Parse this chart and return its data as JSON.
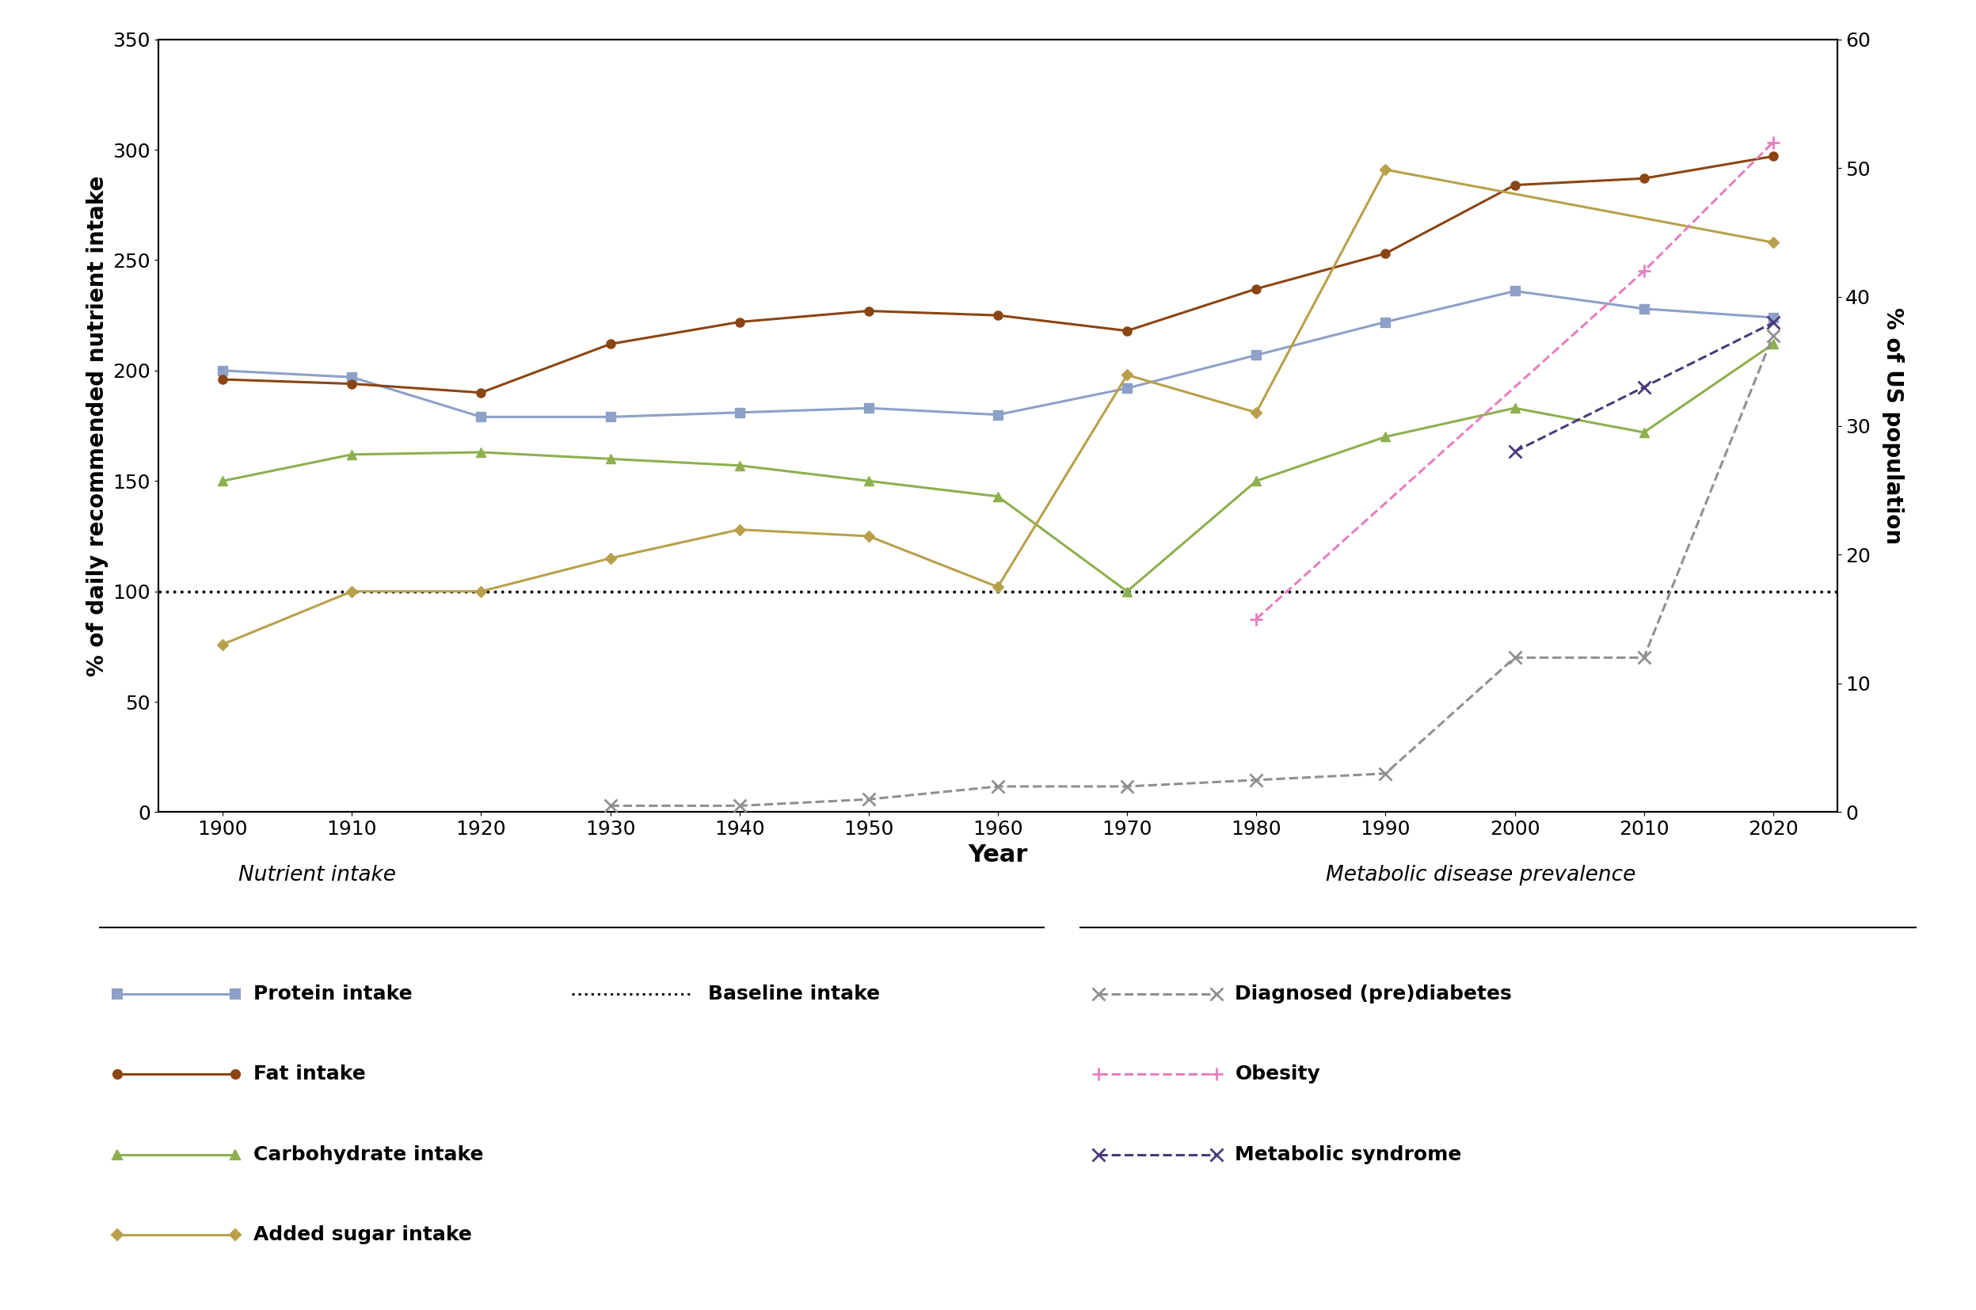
{
  "years": [
    1900,
    1910,
    1920,
    1930,
    1940,
    1950,
    1960,
    1970,
    1980,
    1990,
    2000,
    2010,
    2020
  ],
  "protein_intake": [
    200,
    197,
    179,
    179,
    181,
    183,
    180,
    192,
    207,
    222,
    236,
    228,
    224
  ],
  "fat_intake": [
    196,
    194,
    190,
    212,
    222,
    227,
    225,
    218,
    237,
    253,
    284,
    287,
    297
  ],
  "carb_intake": [
    150,
    162,
    163,
    160,
    157,
    150,
    143,
    100,
    150,
    170,
    183,
    172,
    212
  ],
  "sugar_intake": [
    76,
    100,
    100,
    115,
    128,
    125,
    102,
    198,
    181,
    291,
    null,
    null,
    258
  ],
  "diabetes_pct": [
    null,
    null,
    null,
    0.5,
    0.5,
    1.0,
    2.0,
    2.0,
    2.5,
    3.0,
    12.0,
    12.0,
    37.0
  ],
  "obesity_pct": [
    null,
    null,
    null,
    null,
    null,
    null,
    null,
    null,
    15.0,
    null,
    null,
    42.0,
    52.0
  ],
  "metabolic_pct": [
    null,
    null,
    null,
    null,
    null,
    null,
    null,
    null,
    null,
    null,
    28.0,
    33.0,
    38.0
  ],
  "protein_color": "#8da0c7",
  "fat_color": "#8B4513",
  "carb_color": "#8db04e",
  "sugar_color": "#b8a04a",
  "diabetes_color": "#909090",
  "obesity_color": "#e87ec0",
  "metabolic_color": "#4a3a7a",
  "baseline_color": "#000000",
  "ylabel_left": "% of daily recommended nutrient intake",
  "ylabel_right": "% of US population",
  "xlabel": "Year",
  "ylim_left": [
    0,
    350
  ],
  "ylim_right": [
    0,
    60
  ],
  "yticks_left": [
    0,
    50,
    100,
    150,
    200,
    250,
    300,
    350
  ],
  "yticks_right": [
    0,
    10,
    20,
    30,
    40,
    50,
    60
  ],
  "legend_nutrient_title": "Nutrient intake",
  "legend_metabolic_title": "Metabolic disease prevalence",
  "lw": 2.2,
  "ms": 8
}
